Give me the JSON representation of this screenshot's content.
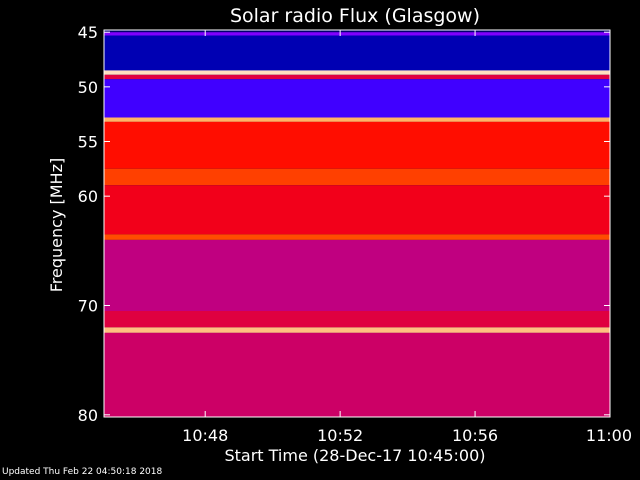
{
  "chart_data": {
    "type": "heatmap",
    "title": "Solar radio Flux (Glasgow)",
    "xlabel": "Start Time (28-Dec-17 10:45:00)",
    "ylabel": "Frequency [MHz]",
    "x_tick_labels": [
      "10:48",
      "10:52",
      "10:56",
      "11:00"
    ],
    "x_tick_minutes": [
      3,
      7,
      11,
      15
    ],
    "x_range_minutes": [
      0,
      15
    ],
    "y_tick_labels": [
      "45",
      "50",
      "55",
      "60",
      "70",
      "80"
    ],
    "y_tick_values": [
      45,
      50,
      55,
      60,
      70,
      80
    ],
    "y_range": [
      44.8,
      80.2
    ],
    "colormap": [
      "#000040",
      "#0000ff",
      "#8000ff",
      "#ff0000",
      "#ff8000",
      "#ffffff"
    ],
    "bands": [
      {
        "from": 44.8,
        "to": 45.0,
        "level": 0.05
      },
      {
        "from": 45.0,
        "to": 45.3,
        "level": 0.4
      },
      {
        "from": 45.3,
        "to": 48.5,
        "level": 0.12
      },
      {
        "from": 48.5,
        "to": 48.9,
        "level": 0.95
      },
      {
        "from": 48.9,
        "to": 49.3,
        "level": 0.55
      },
      {
        "from": 49.3,
        "to": 52.8,
        "level": 0.3
      },
      {
        "from": 52.8,
        "to": 53.2,
        "level": 0.88
      },
      {
        "from": 53.2,
        "to": 57.5,
        "level": 0.62
      },
      {
        "from": 57.5,
        "to": 59.0,
        "level": 0.7
      },
      {
        "from": 59.0,
        "to": 63.5,
        "level": 0.58
      },
      {
        "from": 63.5,
        "to": 64.0,
        "level": 0.72
      },
      {
        "from": 64.0,
        "to": 70.5,
        "level": 0.5
      },
      {
        "from": 70.5,
        "to": 72.0,
        "level": 0.55
      },
      {
        "from": 72.0,
        "to": 72.5,
        "level": 0.9
      },
      {
        "from": 72.5,
        "to": 80.2,
        "level": 0.52
      }
    ]
  },
  "footer": {
    "updated": "Updated Thu Feb 22 04:50:18 2018"
  }
}
